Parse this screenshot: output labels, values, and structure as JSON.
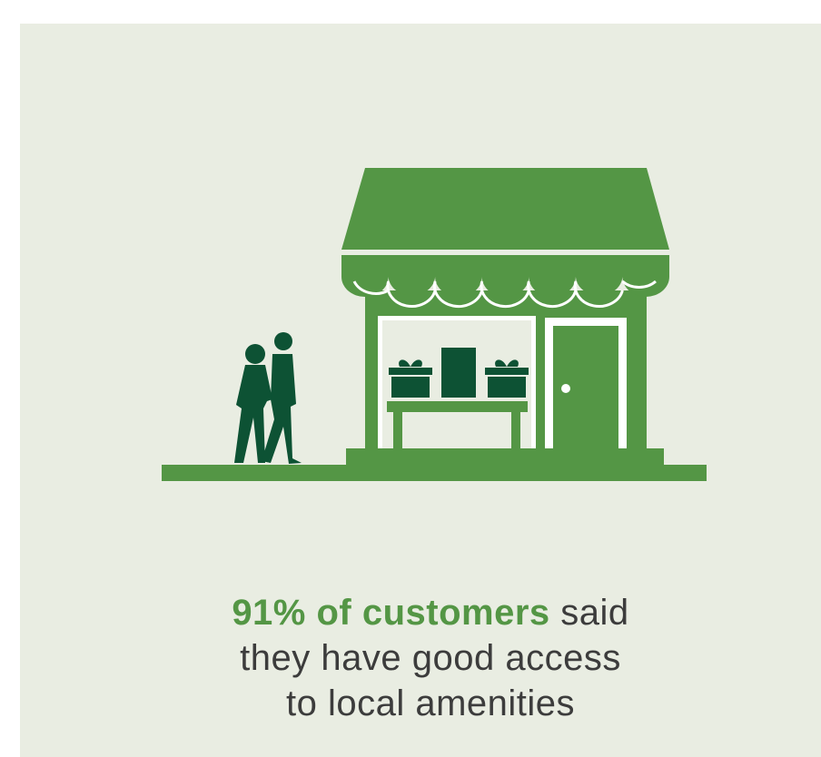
{
  "stat": {
    "highlight": "91% of customers",
    "lines": [
      "said",
      "they have good access",
      "to local amenities"
    ]
  }
}
